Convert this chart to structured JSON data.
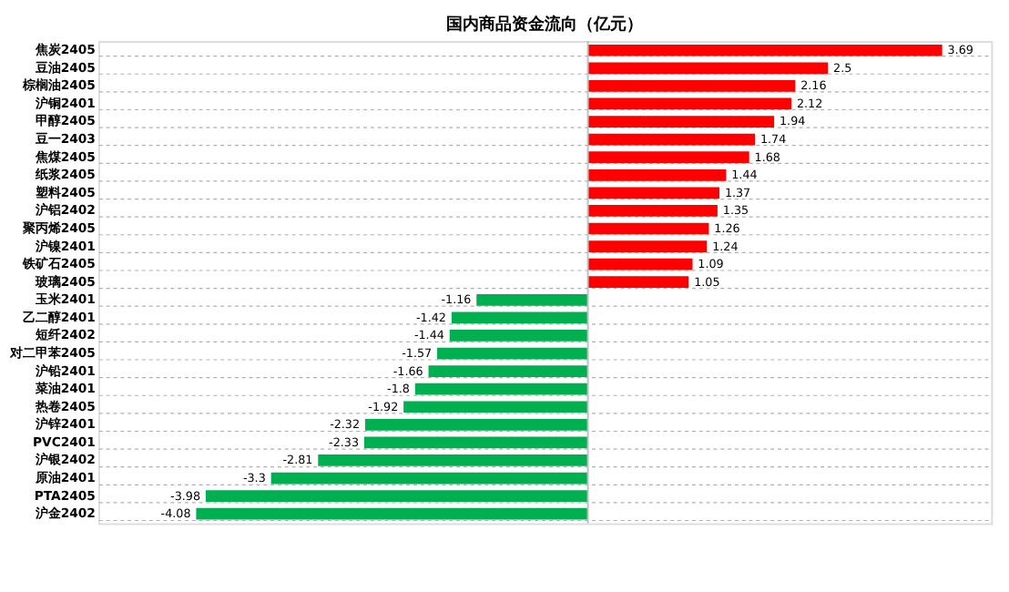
{
  "chart_data": {
    "type": "bar",
    "orientation": "horizontal",
    "title": "国内商品资金流向（亿元）",
    "categories": [
      "焦炭2405",
      "豆油2405",
      "棕榈油2405",
      "沪铜2401",
      "甲醇2405",
      "豆一2403",
      "焦煤2405",
      "纸浆2405",
      "塑料2405",
      "沪铝2402",
      "聚丙烯2405",
      "沪镍2401",
      "铁矿石2405",
      "玻璃2405",
      "玉米2401",
      "乙二醇2401",
      "短纤2402",
      "对二甲苯2405",
      "沪铅2401",
      "菜油2401",
      "热卷2405",
      "沪锌2401",
      "PVC2401",
      "沪银2402",
      "原油2401",
      "PTA2405",
      "沪金2402"
    ],
    "values": [
      3.69,
      2.5,
      2.16,
      2.12,
      1.94,
      1.74,
      1.68,
      1.44,
      1.37,
      1.35,
      1.26,
      1.24,
      1.09,
      1.05,
      -1.16,
      -1.42,
      -1.44,
      -1.57,
      -1.66,
      -1.8,
      -1.92,
      -2.32,
      -2.33,
      -2.81,
      -3.3,
      -3.98,
      -4.08
    ],
    "colors": [
      "#ff0000",
      "#ff0000",
      "#ff0000",
      "#ff0000",
      "#ff0000",
      "#ff0000",
      "#ff0000",
      "#ff0000",
      "#ff0000",
      "#ff0000",
      "#ff0000",
      "#ff0000",
      "#ff0000",
      "#ff0000",
      "#00b050",
      "#00b050",
      "#00b050",
      "#00b050",
      "#00b050",
      "#00b050",
      "#00b050",
      "#00b050",
      "#00b050",
      "#00b050",
      "#00b050",
      "#00b050",
      "#00b050"
    ],
    "xlim": [
      -5.1,
      4.2
    ],
    "data_labels": true,
    "grid": "y",
    "tick_labels": "y"
  }
}
